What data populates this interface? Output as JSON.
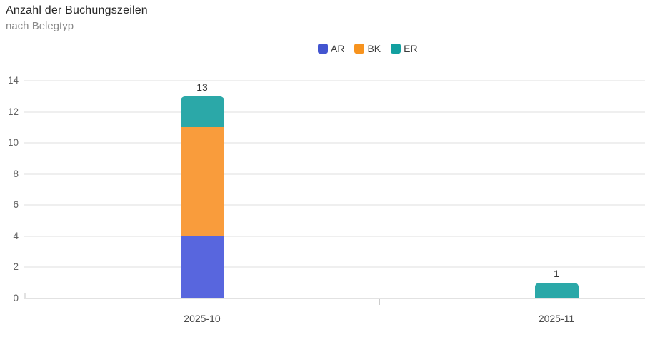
{
  "header": {
    "title": "Anzahl der Buchungszeilen",
    "subtitle": "nach Belegtyp"
  },
  "legend": [
    {
      "label": "AR",
      "color": "#4355d0"
    },
    {
      "label": "BK",
      "color": "#f7931e"
    },
    {
      "label": "ER",
      "color": "#12a0a0"
    }
  ],
  "chart_data": {
    "type": "bar",
    "stacked": true,
    "title": "Anzahl der Buchungszeilen",
    "subtitle": "nach Belegtyp",
    "categories": [
      "2025-10",
      "2025-11"
    ],
    "series": [
      {
        "name": "AR",
        "color": "#5866de",
        "values": [
          4,
          0
        ]
      },
      {
        "name": "BK",
        "color": "#f99c3c",
        "values": [
          7,
          0
        ]
      },
      {
        "name": "ER",
        "color": "#2ba8a8",
        "values": [
          2,
          1
        ]
      }
    ],
    "totals": [
      13,
      1
    ],
    "xlabel": "",
    "ylabel": "",
    "ylim": [
      0,
      14
    ],
    "yticks": [
      0,
      2,
      4,
      6,
      8,
      10,
      12,
      14
    ],
    "grid": true,
    "legend_position": "top-center",
    "grid_color": "#efefef",
    "axis_line_color": "#e2e2e2"
  }
}
